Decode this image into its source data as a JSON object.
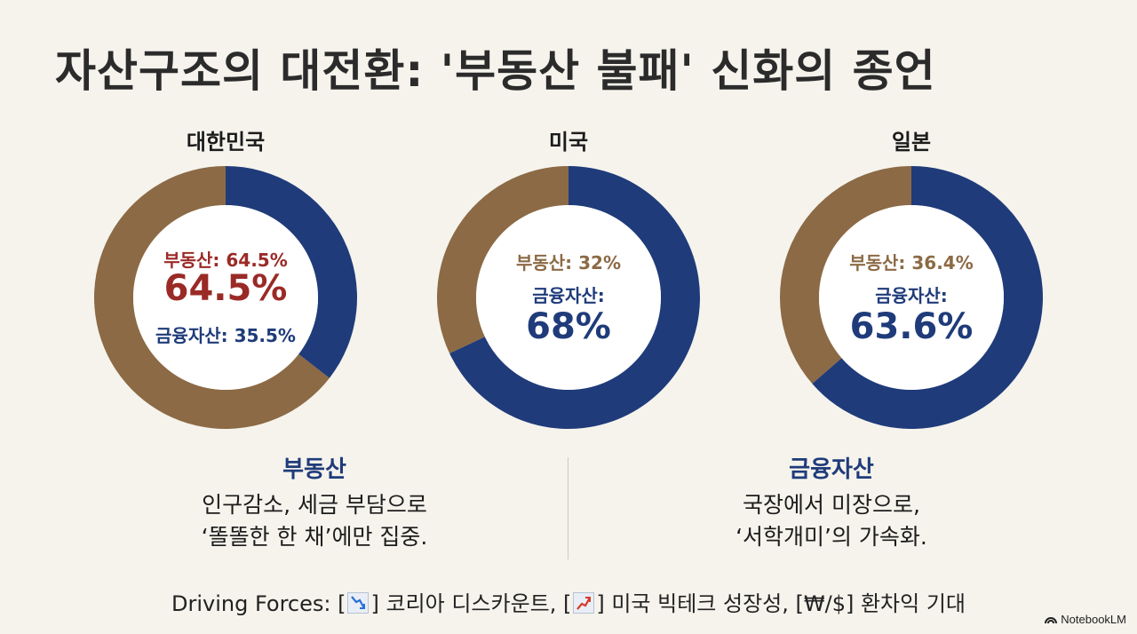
{
  "title": "자산구조의 대전환: '부동산 불패' 신화의 종언",
  "colors": {
    "real_estate": "#8c6a45",
    "financial": "#1f3b7a",
    "korea_highlight": "#9a2a26"
  },
  "chart_data": [
    {
      "type": "pie",
      "title": "대한민국",
      "series": [
        {
          "name": "부동산",
          "value": 64.5
        },
        {
          "name": "금융자산",
          "value": 35.5
        }
      ],
      "center_labels": {
        "line1": "부동산: 64.5%",
        "big": "64.5%",
        "line2": "금융자산: 35.5%"
      }
    },
    {
      "type": "pie",
      "title": "미국",
      "series": [
        {
          "name": "부동산",
          "value": 32
        },
        {
          "name": "금융자산",
          "value": 68
        }
      ],
      "center_labels": {
        "line1": "부동산: 32%",
        "line2": "금융자산:",
        "big": "68%"
      }
    },
    {
      "type": "pie",
      "title": "일본",
      "series": [
        {
          "name": "부동산",
          "value": 36.4
        },
        {
          "name": "금융자산",
          "value": 63.6
        }
      ],
      "center_labels": {
        "line1": "부동산: 36.4%",
        "line2": "금융자산:",
        "big": "63.6%"
      }
    }
  ],
  "left_column": {
    "heading": "부동산",
    "line1": "인구감소, 세금 부담으로",
    "line2": "‘똘똘한 한 채’에만 집중."
  },
  "right_column": {
    "heading": "금융자산",
    "line1": "국장에서 미장으로,",
    "line2": "‘서학개미’의 가속화."
  },
  "footer": {
    "prefix": "Driving Forces: [",
    "item1": "] 코리아 디스카운트, [",
    "item2": "] 미국 빅테크 성장성, [",
    "currency": "₩/$",
    "item3": "] 환차익 기대",
    "icon1": "chart-down-icon",
    "icon2": "chart-up-icon"
  },
  "brand": "NotebookLM"
}
